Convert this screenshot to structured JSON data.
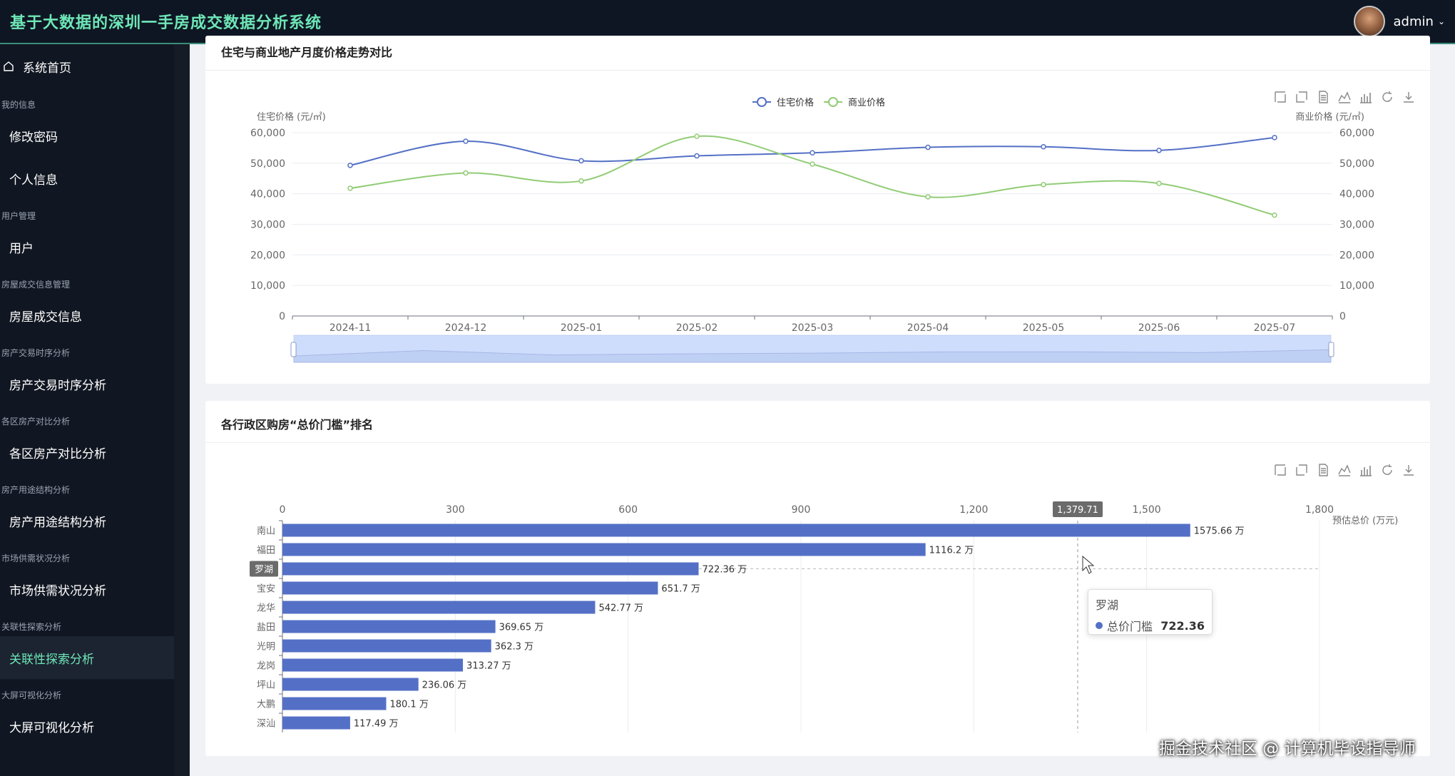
{
  "header": {
    "title": "基于大数据的深圳一手房成交数据分析系统",
    "username": "admin",
    "caret": "⌄"
  },
  "sidebar": {
    "home": "系统首页",
    "groups": [
      {
        "label": "我的信息",
        "items": [
          "修改密码",
          "个人信息"
        ]
      },
      {
        "label": "用户管理",
        "items": [
          "用户"
        ]
      },
      {
        "label": "房屋成交信息管理",
        "items": [
          "房屋成交信息"
        ]
      },
      {
        "label": "房产交易时序分析",
        "items": [
          "房产交易时序分析"
        ]
      },
      {
        "label": "各区房产对比分析",
        "items": [
          "各区房产对比分析"
        ]
      },
      {
        "label": "房产用途结构分析",
        "items": [
          "房产用途结构分析"
        ]
      },
      {
        "label": "市场供需状况分析",
        "items": [
          "市场供需状况分析"
        ]
      },
      {
        "label": "关联性探索分析",
        "items": [
          "关联性探索分析"
        ]
      },
      {
        "label": "大屏可视化分析",
        "items": [
          "大屏可视化分析"
        ]
      }
    ],
    "active_item": "关联性探索分析"
  },
  "card1": {
    "title": "住宅与商业地产月度价格走势对比"
  },
  "card2": {
    "title": "各行政区购房“总价门槛”排名"
  },
  "chart_data": [
    {
      "type": "line",
      "title": "住宅与商业地产月度价格走势对比",
      "x": [
        "2024-11",
        "2024-12",
        "2025-01",
        "2025-02",
        "2025-03",
        "2025-04",
        "2025-05",
        "2025-06",
        "2025-07"
      ],
      "series": [
        {
          "name": "住宅价格",
          "values": [
            49300,
            57200,
            50800,
            52400,
            53400,
            55200,
            55400,
            54200,
            58400
          ],
          "color": "#5470c6",
          "axis": "left"
        },
        {
          "name": "商业价格",
          "values": [
            41800,
            46800,
            44200,
            58800,
            49700,
            39000,
            43000,
            43400,
            33000
          ],
          "color": "#91cc75",
          "axis": "right"
        }
      ],
      "ylabel_left": "住宅价格 (元/㎡)",
      "ylabel_right": "商业价格 (元/㎡)",
      "ylim": [
        0,
        60000
      ],
      "yticks": [
        "0",
        "10,000",
        "20,000",
        "30,000",
        "40,000",
        "50,000",
        "60,000"
      ],
      "legend_position": "top-center",
      "smooth": true,
      "data_zoom": true
    },
    {
      "type": "bar",
      "orientation": "horizontal",
      "title": "各行政区购房“总价门槛”排名",
      "categories": [
        "南山",
        "福田",
        "罗湖",
        "宝安",
        "龙华",
        "盐田",
        "光明",
        "龙岗",
        "坪山",
        "大鹏",
        "深汕"
      ],
      "values": [
        1575.66,
        1116.2,
        722.36,
        651.7,
        542.77,
        369.65,
        362.3,
        313.27,
        236.06,
        180.1,
        117.49
      ],
      "value_suffix": " 万",
      "series_name": "总价门槛",
      "xlabel": "预估总价 (万元)",
      "xlim": [
        0,
        1800
      ],
      "xticks": [
        "0",
        "300",
        "600",
        "900",
        "1,200",
        "1,500",
        "1,800"
      ],
      "color": "#5470c6",
      "axis_pointer_value": "1,379.71",
      "highlighted_category": "罗湖"
    }
  ],
  "tooltip": {
    "title": "罗湖",
    "series": "总价门槛",
    "value": "722.36"
  },
  "watermark": "掘金技术社区 @ 计算机毕设指导师",
  "colors": {
    "accent": "#6ee7b7",
    "primary_series": "#5470c6",
    "secondary_series": "#91cc75",
    "topbar_bg": "#0f1623",
    "sidebar_bg": "#111722"
  }
}
